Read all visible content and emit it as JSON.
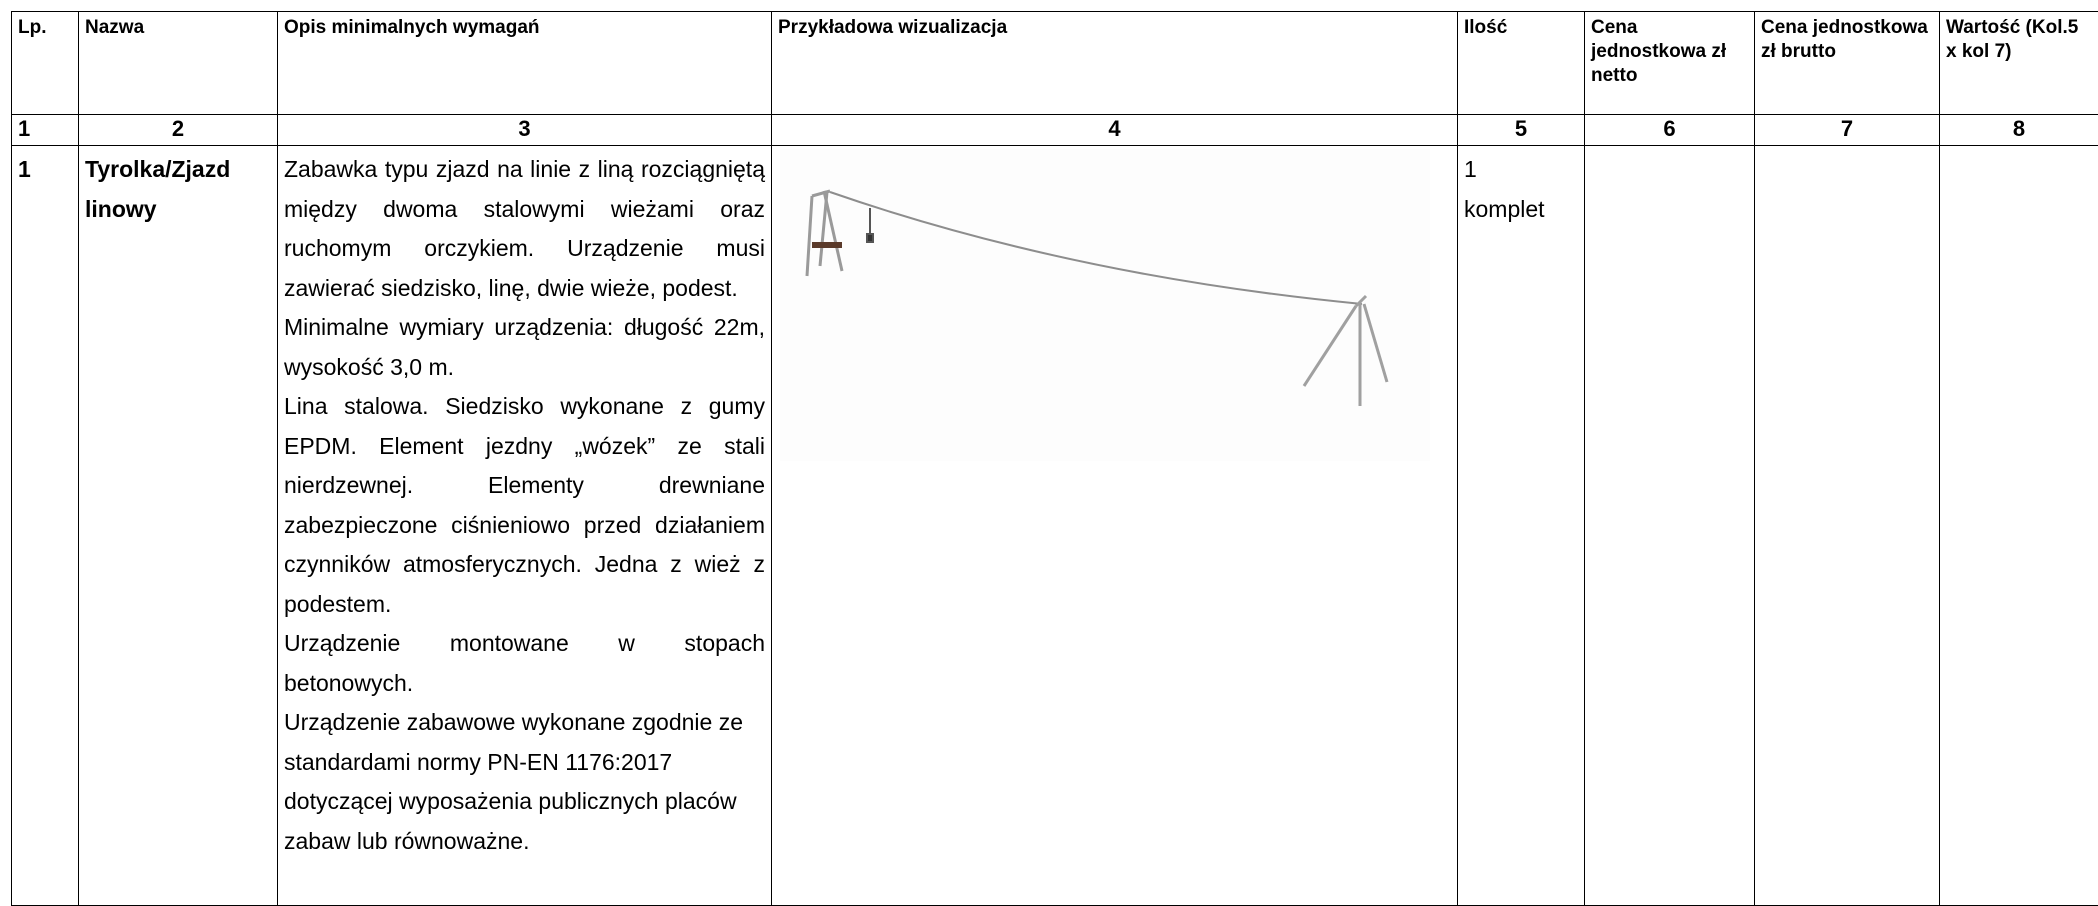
{
  "table": {
    "header": [
      "Lp.",
      "Nazwa",
      "Opis minimalnych wymagań",
      "Przykładowa wizualizacja",
      "Ilość",
      "Cena jednostkowa zł netto",
      "Cena jednostkowa zł brutto",
      "Wartość (Kol.5 x kol 7)"
    ],
    "column_numbers": [
      "1",
      "2",
      "3",
      "4",
      "5",
      "6",
      "7",
      "8"
    ],
    "rows": [
      {
        "lp": "1",
        "name": "Tyrolka/Zjazd linowy",
        "description": [
          "Zabawka typu zjazd na linie z liną rozciągniętą między dwoma stalowymi wieżami oraz ruchomym orczykiem. Urządzenie musi zawierać siedzisko, linę, dwie wieże, podest.",
          "Minimalne wymiary urządzenia: długość 22m, wysokość 3,0 m.",
          "Lina stalowa. Siedzisko wykonane z gumy EPDM. Element jezdny „wózek” ze stali nierdzewnej. Elementy drewniane zabezpieczone ciśnieniowo przed działaniem czynników atmosferycznych. Jedna z wież z podestem.",
          "Urządzenie montowane w stopach betonowych.",
          "Urządzenie zabawowe wykonane zgodnie ze standardami normy PN-EN 1176:2017 dotyczącej wyposażenia publicznych placów zabaw lub równoważne."
        ],
        "quantity": "1 komplet"
      }
    ]
  }
}
